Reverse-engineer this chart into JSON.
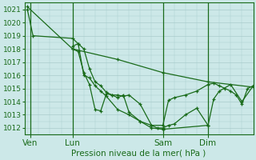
{
  "title": "Pression niveau de la mer( hPa )",
  "background_color": "#cce8e8",
  "grid_color": "#aacccc",
  "line_color": "#1a6b1a",
  "ylim": [
    1011.5,
    1021.5
  ],
  "yticks": [
    1012,
    1013,
    1014,
    1015,
    1016,
    1017,
    1018,
    1019,
    1020,
    1021
  ],
  "xtick_labels": [
    "Ven",
    "Lun",
    "Sam",
    "Dim"
  ],
  "xtick_positions": [
    0.5,
    8,
    24,
    32
  ],
  "day_lines": [
    0.5,
    8,
    24,
    32
  ],
  "xlabel_fontsize": 7.5,
  "ylabel_fontsize": 6.5,
  "xlim": [
    -0.5,
    40
  ],
  "series": [
    {
      "x": [
        0,
        8,
        16,
        24,
        32,
        40
      ],
      "y": [
        1021.2,
        1018.0,
        1017.2,
        1016.2,
        1015.5,
        1015.1
      ]
    },
    {
      "x": [
        0,
        1,
        8,
        9,
        10,
        11,
        12,
        13,
        14,
        16,
        18,
        20,
        22,
        23,
        24,
        25,
        26,
        28,
        30,
        32
      ],
      "y": [
        1021.0,
        1019.0,
        1018.8,
        1018.4,
        1016.0,
        1015.8,
        1015.2,
        1014.8,
        1014.4,
        1013.4,
        1013.0,
        1012.5,
        1012.2,
        1012.0,
        1012.0,
        1012.2,
        1012.3,
        1013.0,
        1013.5,
        1012.2
      ]
    },
    {
      "x": [
        8,
        9,
        10,
        11,
        12,
        13,
        14,
        15,
        16,
        17,
        18,
        20,
        22,
        24,
        25,
        26,
        28,
        30,
        32,
        33,
        34,
        35,
        36,
        37,
        38,
        39,
        40
      ],
      "y": [
        1018.2,
        1018.4,
        1018.0,
        1016.5,
        1015.5,
        1015.2,
        1014.7,
        1014.5,
        1014.5,
        1014.4,
        1014.5,
        1013.8,
        1012.2,
        1012.2,
        1014.1,
        1014.3,
        1014.5,
        1014.8,
        1015.3,
        1015.4,
        1015.2,
        1015.0,
        1014.8,
        1014.5,
        1013.8,
        1015.0,
        1015.2
      ]
    },
    {
      "x": [
        8,
        9,
        10,
        11,
        12,
        13,
        14,
        15,
        16,
        17,
        18,
        20,
        22,
        24,
        32,
        33,
        34,
        36,
        38,
        40
      ],
      "y": [
        1018.0,
        1017.8,
        1016.2,
        1015.3,
        1013.4,
        1013.3,
        1014.6,
        1014.5,
        1014.3,
        1014.5,
        1013.2,
        1012.5,
        1012.0,
        1011.9,
        1012.2,
        1014.2,
        1014.8,
        1015.3,
        1014.0,
        1015.2
      ]
    }
  ]
}
